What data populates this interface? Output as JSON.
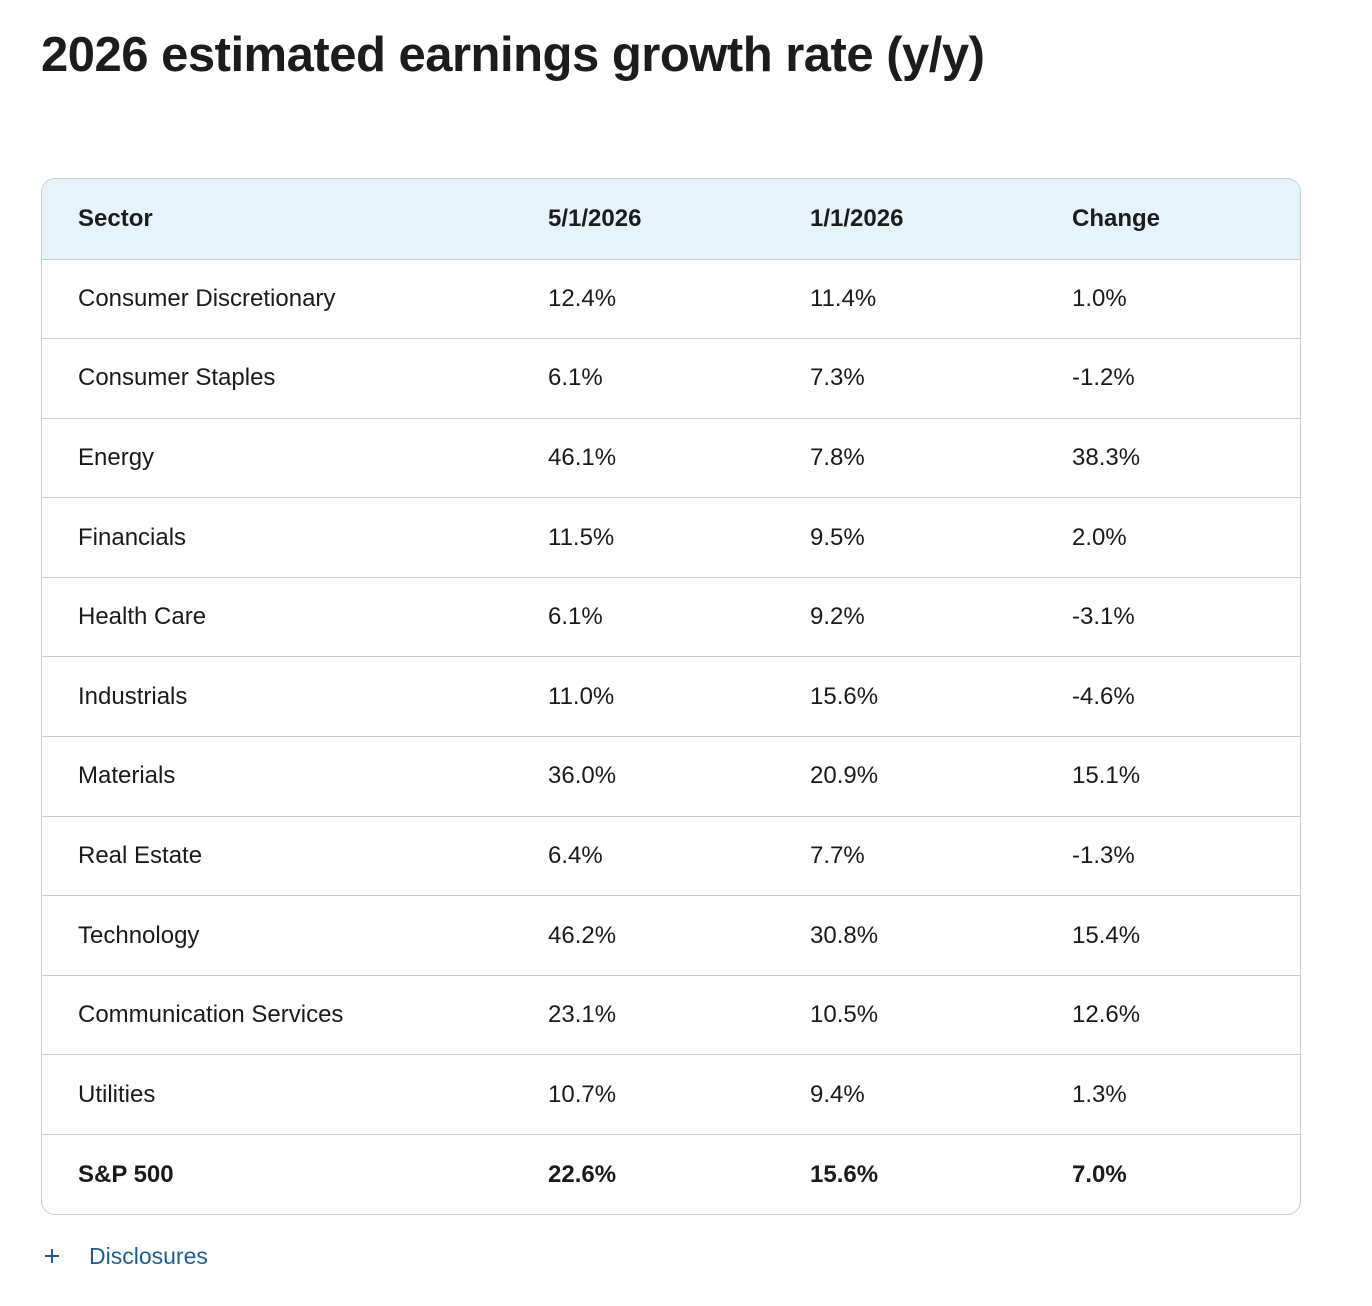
{
  "title": "2026 estimated earnings growth rate (y/y)",
  "table": {
    "headers": {
      "sector": "Sector",
      "may": "5/1/2026",
      "jan": "1/1/2026",
      "change": "Change"
    },
    "rows": [
      {
        "sector": "Consumer Discretionary",
        "may": "12.4%",
        "jan": "11.4%",
        "change": "1.0%"
      },
      {
        "sector": "Consumer Staples",
        "may": "6.1%",
        "jan": "7.3%",
        "change": "-1.2%"
      },
      {
        "sector": "Energy",
        "may": "46.1%",
        "jan": "7.8%",
        "change": "38.3%"
      },
      {
        "sector": "Financials",
        "may": "11.5%",
        "jan": "9.5%",
        "change": "2.0%"
      },
      {
        "sector": "Health Care",
        "may": "6.1%",
        "jan": "9.2%",
        "change": "-3.1%"
      },
      {
        "sector": "Industrials",
        "may": "11.0%",
        "jan": "15.6%",
        "change": "-4.6%"
      },
      {
        "sector": "Materials",
        "may": "36.0%",
        "jan": "20.9%",
        "change": "15.1%"
      },
      {
        "sector": "Real Estate",
        "may": "6.4%",
        "jan": "7.7%",
        "change": "-1.3%"
      },
      {
        "sector": "Technology",
        "may": "46.2%",
        "jan": "30.8%",
        "change": "15.4%"
      },
      {
        "sector": "Communication Services",
        "may": "23.1%",
        "jan": "10.5%",
        "change": "12.6%"
      },
      {
        "sector": "Utilities",
        "may": "10.7%",
        "jan": "9.4%",
        "change": "1.3%"
      }
    ],
    "total": {
      "sector": "S&P 500",
      "may": "22.6%",
      "jan": "15.6%",
      "change": "7.0%"
    }
  },
  "disclosures": {
    "icon": "plus-icon",
    "label": "Disclosures"
  },
  "colors": {
    "header_bg": "#e7f3fa",
    "border": "#c9cdd1",
    "link": "#1f5d8f",
    "text": "#1c1c1c"
  }
}
